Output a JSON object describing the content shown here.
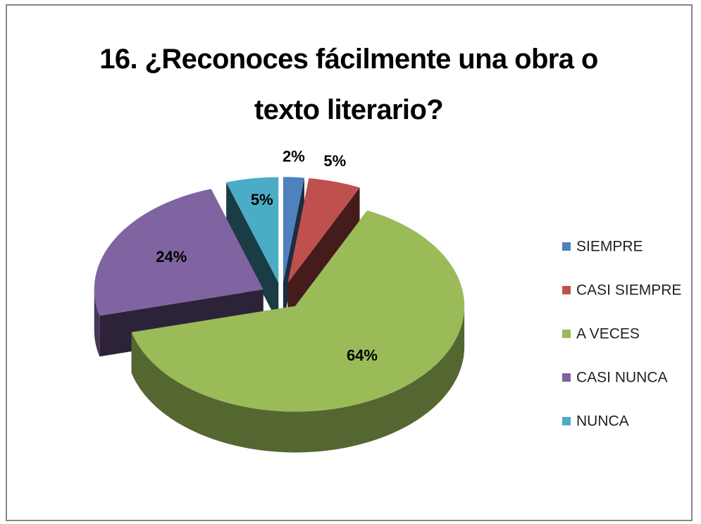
{
  "chart_data": {
    "type": "pie3d",
    "title": "16. ¿Reconoces fácilmente una obra o texto literario?",
    "categories": [
      "SIEMPRE",
      "CASI SIEMPRE",
      "A VECES",
      "CASI NUNCA",
      "NUNCA"
    ],
    "values": [
      2,
      5,
      64,
      24,
      5
    ],
    "value_labels": [
      "2%",
      "5%",
      "64%",
      "24%",
      "5%"
    ],
    "colors": [
      "#4f81bd",
      "#c0504d",
      "#9bbb59",
      "#8064a2",
      "#4bacc6"
    ],
    "legend": "right"
  }
}
